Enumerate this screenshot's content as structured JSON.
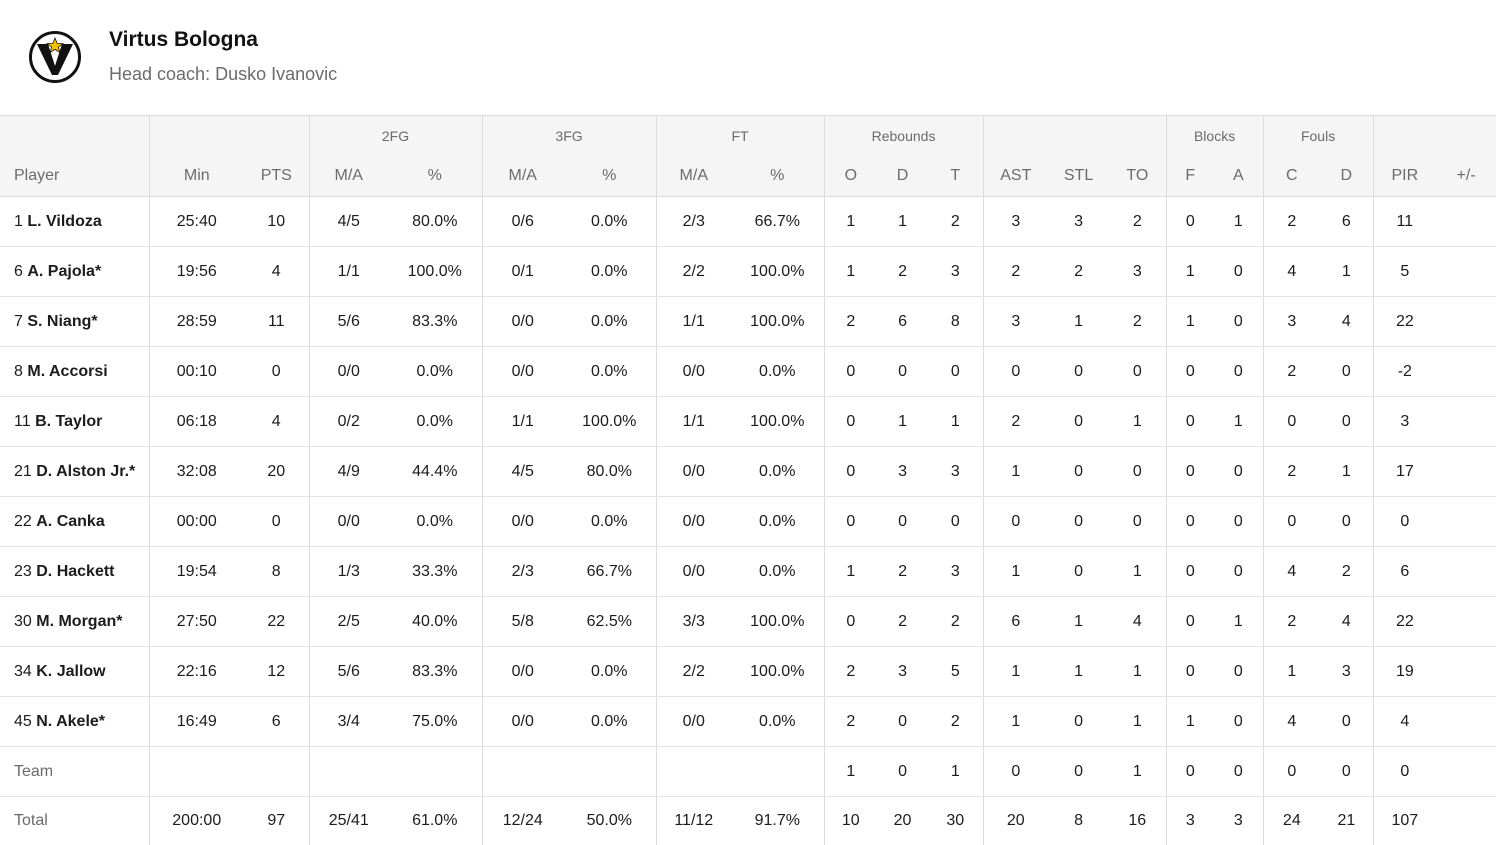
{
  "team": {
    "name": "Virtus Bologna",
    "coach": "Head coach: Dusko Ivanovic"
  },
  "groups": {
    "fg2": "2FG",
    "fg3": "3FG",
    "ft": "FT",
    "rebounds": "Rebounds",
    "blocks": "Blocks",
    "fouls": "Fouls"
  },
  "cols": {
    "player": "Player",
    "min": "Min",
    "pts": "PTS",
    "fg2_ma": "M/A",
    "fg2_pct": "%",
    "fg3_ma": "M/A",
    "fg3_pct": "%",
    "ft_ma": "M/A",
    "ft_pct": "%",
    "reb_o": "O",
    "reb_d": "D",
    "reb_t": "T",
    "ast": "AST",
    "stl": "STL",
    "to": "TO",
    "blk_f": "F",
    "blk_a": "A",
    "foul_c": "C",
    "foul_d": "D",
    "pir": "PIR",
    "pm": "+/-"
  },
  "players": [
    {
      "num": "1",
      "name": "L. Vildoza",
      "min": "25:40",
      "pts": "10",
      "fg2": "4/5",
      "fg2p": "80.0%",
      "fg3": "0/6",
      "fg3p": "0.0%",
      "ft": "2/3",
      "ftp": "66.7%",
      "o": "1",
      "d": "1",
      "t": "2",
      "ast": "3",
      "stl": "3",
      "to": "2",
      "bf": "0",
      "ba": "1",
      "fc": "2",
      "fd": "6",
      "pir": "11",
      "pm": ""
    },
    {
      "num": "6",
      "name": "A. Pajola*",
      "min": "19:56",
      "pts": "4",
      "fg2": "1/1",
      "fg2p": "100.0%",
      "fg3": "0/1",
      "fg3p": "0.0%",
      "ft": "2/2",
      "ftp": "100.0%",
      "o": "1",
      "d": "2",
      "t": "3",
      "ast": "2",
      "stl": "2",
      "to": "3",
      "bf": "1",
      "ba": "0",
      "fc": "4",
      "fd": "1",
      "pir": "5",
      "pm": ""
    },
    {
      "num": "7",
      "name": "S. Niang*",
      "min": "28:59",
      "pts": "11",
      "fg2": "5/6",
      "fg2p": "83.3%",
      "fg3": "0/0",
      "fg3p": "0.0%",
      "ft": "1/1",
      "ftp": "100.0%",
      "o": "2",
      "d": "6",
      "t": "8",
      "ast": "3",
      "stl": "1",
      "to": "2",
      "bf": "1",
      "ba": "0",
      "fc": "3",
      "fd": "4",
      "pir": "22",
      "pm": ""
    },
    {
      "num": "8",
      "name": "M. Accorsi",
      "min": "00:10",
      "pts": "0",
      "fg2": "0/0",
      "fg2p": "0.0%",
      "fg3": "0/0",
      "fg3p": "0.0%",
      "ft": "0/0",
      "ftp": "0.0%",
      "o": "0",
      "d": "0",
      "t": "0",
      "ast": "0",
      "stl": "0",
      "to": "0",
      "bf": "0",
      "ba": "0",
      "fc": "2",
      "fd": "0",
      "pir": "-2",
      "pm": ""
    },
    {
      "num": "11",
      "name": "B. Taylor",
      "min": "06:18",
      "pts": "4",
      "fg2": "0/2",
      "fg2p": "0.0%",
      "fg3": "1/1",
      "fg3p": "100.0%",
      "ft": "1/1",
      "ftp": "100.0%",
      "o": "0",
      "d": "1",
      "t": "1",
      "ast": "2",
      "stl": "0",
      "to": "1",
      "bf": "0",
      "ba": "1",
      "fc": "0",
      "fd": "0",
      "pir": "3",
      "pm": ""
    },
    {
      "num": "21",
      "name": "D. Alston Jr.*",
      "min": "32:08",
      "pts": "20",
      "fg2": "4/9",
      "fg2p": "44.4%",
      "fg3": "4/5",
      "fg3p": "80.0%",
      "ft": "0/0",
      "ftp": "0.0%",
      "o": "0",
      "d": "3",
      "t": "3",
      "ast": "1",
      "stl": "0",
      "to": "0",
      "bf": "0",
      "ba": "0",
      "fc": "2",
      "fd": "1",
      "pir": "17",
      "pm": ""
    },
    {
      "num": "22",
      "name": "A. Canka",
      "min": "00:00",
      "pts": "0",
      "fg2": "0/0",
      "fg2p": "0.0%",
      "fg3": "0/0",
      "fg3p": "0.0%",
      "ft": "0/0",
      "ftp": "0.0%",
      "o": "0",
      "d": "0",
      "t": "0",
      "ast": "0",
      "stl": "0",
      "to": "0",
      "bf": "0",
      "ba": "0",
      "fc": "0",
      "fd": "0",
      "pir": "0",
      "pm": ""
    },
    {
      "num": "23",
      "name": "D. Hackett",
      "min": "19:54",
      "pts": "8",
      "fg2": "1/3",
      "fg2p": "33.3%",
      "fg3": "2/3",
      "fg3p": "66.7%",
      "ft": "0/0",
      "ftp": "0.0%",
      "o": "1",
      "d": "2",
      "t": "3",
      "ast": "1",
      "stl": "0",
      "to": "1",
      "bf": "0",
      "ba": "0",
      "fc": "4",
      "fd": "2",
      "pir": "6",
      "pm": ""
    },
    {
      "num": "30",
      "name": "M. Morgan*",
      "min": "27:50",
      "pts": "22",
      "fg2": "2/5",
      "fg2p": "40.0%",
      "fg3": "5/8",
      "fg3p": "62.5%",
      "ft": "3/3",
      "ftp": "100.0%",
      "o": "0",
      "d": "2",
      "t": "2",
      "ast": "6",
      "stl": "1",
      "to": "4",
      "bf": "0",
      "ba": "1",
      "fc": "2",
      "fd": "4",
      "pir": "22",
      "pm": ""
    },
    {
      "num": "34",
      "name": "K. Jallow",
      "min": "22:16",
      "pts": "12",
      "fg2": "5/6",
      "fg2p": "83.3%",
      "fg3": "0/0",
      "fg3p": "0.0%",
      "ft": "2/2",
      "ftp": "100.0%",
      "o": "2",
      "d": "3",
      "t": "5",
      "ast": "1",
      "stl": "1",
      "to": "1",
      "bf": "0",
      "ba": "0",
      "fc": "1",
      "fd": "3",
      "pir": "19",
      "pm": ""
    },
    {
      "num": "45",
      "name": "N. Akele*",
      "min": "16:49",
      "pts": "6",
      "fg2": "3/4",
      "fg2p": "75.0%",
      "fg3": "0/0",
      "fg3p": "0.0%",
      "ft": "0/0",
      "ftp": "0.0%",
      "o": "2",
      "d": "0",
      "t": "2",
      "ast": "1",
      "stl": "0",
      "to": "1",
      "bf": "1",
      "ba": "0",
      "fc": "4",
      "fd": "0",
      "pir": "4",
      "pm": ""
    }
  ],
  "team_row": {
    "label": "Team",
    "o": "1",
    "d": "0",
    "t": "1",
    "ast": "0",
    "stl": "0",
    "to": "1",
    "bf": "0",
    "ba": "0",
    "fc": "0",
    "fd": "0",
    "pir": "0"
  },
  "total_row": {
    "label": "Total",
    "min": "200:00",
    "pts": "97",
    "fg2": "25/41",
    "fg2p": "61.0%",
    "fg3": "12/24",
    "fg3p": "50.0%",
    "ft": "11/12",
    "ftp": "91.7%",
    "o": "10",
    "d": "20",
    "t": "30",
    "ast": "20",
    "stl": "8",
    "to": "16",
    "bf": "3",
    "ba": "3",
    "fc": "24",
    "fd": "21",
    "pir": "107",
    "pm": ""
  }
}
